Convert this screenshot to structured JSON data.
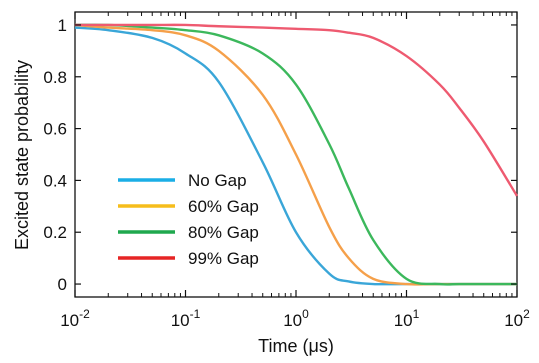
{
  "chart_data": {
    "type": "line",
    "title": "",
    "xlabel": "Time (μs)",
    "ylabel": "Excited state probability",
    "x_scale": "log",
    "xlim": [
      0.01,
      100
    ],
    "ylim": [
      -0.05,
      1.05
    ],
    "grid": false,
    "legend_position": "bottom-left",
    "x_ticks": [
      {
        "value": 0.01,
        "base": "10",
        "exp": "-2"
      },
      {
        "value": 0.1,
        "base": "10",
        "exp": "-1"
      },
      {
        "value": 1,
        "base": "10",
        "exp": "0"
      },
      {
        "value": 10,
        "base": "10",
        "exp": "1"
      },
      {
        "value": 100,
        "base": "10",
        "exp": "2"
      }
    ],
    "y_ticks": [
      {
        "value": 0,
        "label": "0"
      },
      {
        "value": 0.2,
        "label": "0.2"
      },
      {
        "value": 0.4,
        "label": "0.4"
      },
      {
        "value": 0.6,
        "label": "0.6"
      },
      {
        "value": 0.8,
        "label": "0.8"
      },
      {
        "value": 1,
        "label": "1"
      }
    ],
    "x": [
      0.01,
      0.02,
      0.05,
      0.1,
      0.2,
      0.5,
      1,
      2,
      3,
      5,
      10,
      20,
      30,
      50,
      100
    ],
    "series": [
      {
        "name": "No Gap",
        "color": "#3aa6d8",
        "values": [
          0.99,
          0.98,
          0.95,
          0.89,
          0.78,
          0.47,
          0.2,
          0.04,
          0.01,
          0.0,
          0.0,
          0.0,
          0.0,
          0.0,
          0.0
        ]
      },
      {
        "name": "60% Gap",
        "color": "#f5a04a",
        "values": [
          1.0,
          0.99,
          0.98,
          0.96,
          0.9,
          0.73,
          0.5,
          0.22,
          0.1,
          0.02,
          0.0,
          0.0,
          0.0,
          0.0,
          0.0
        ]
      },
      {
        "name": "80% Gap",
        "color": "#3cb85c",
        "values": [
          1.0,
          1.0,
          0.99,
          0.98,
          0.96,
          0.89,
          0.77,
          0.54,
          0.37,
          0.17,
          0.02,
          0.0,
          0.0,
          0.0,
          0.0
        ]
      },
      {
        "name": "99% Gap",
        "color": "#ee5a70",
        "values": [
          1.0,
          1.0,
          1.0,
          1.0,
          0.995,
          0.99,
          0.985,
          0.98,
          0.97,
          0.95,
          0.88,
          0.77,
          0.68,
          0.55,
          0.34
        ]
      }
    ],
    "legend": [
      {
        "label": "No Gap",
        "color": "#1aaee6"
      },
      {
        "label": "60% Gap",
        "color": "#f6bd1c"
      },
      {
        "label": "80% Gap",
        "color": "#1fa84e"
      },
      {
        "label": "99% Gap",
        "color": "#e62424"
      }
    ]
  }
}
